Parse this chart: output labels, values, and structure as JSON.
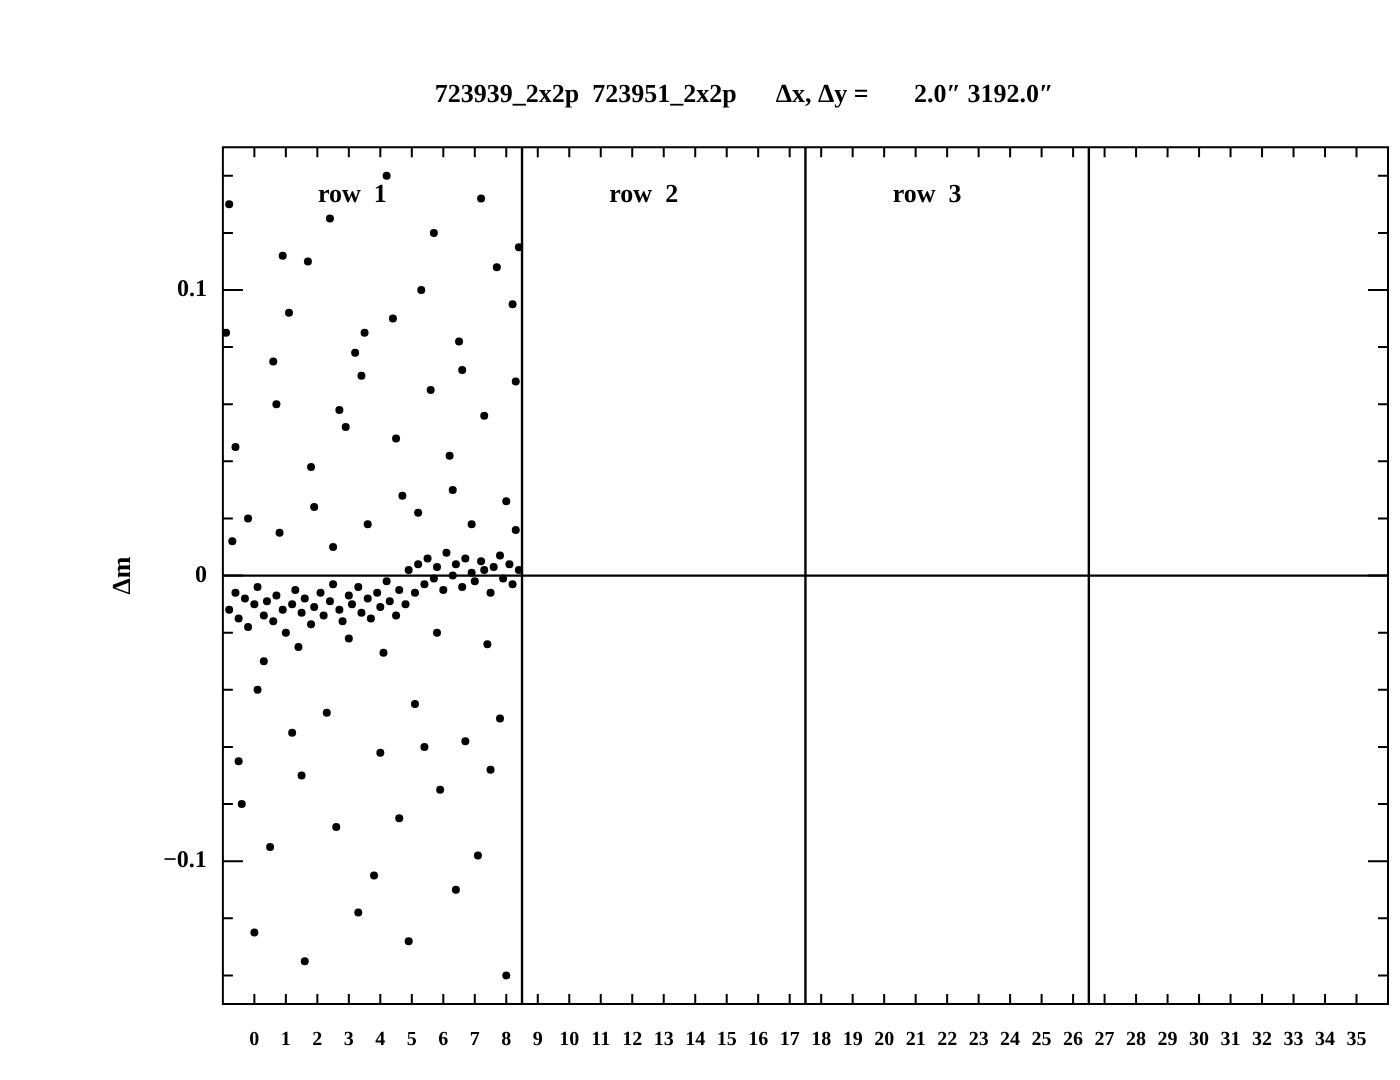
{
  "chart_data": {
    "type": "scatter",
    "title": "723939_2x2p  723951_2x2p      Δx, Δy =       2.0″ 3192.0″",
    "ylabel": "Δm",
    "x": [
      -0.8,
      -0.6,
      -0.5,
      -0.3,
      -0.2,
      0.0,
      0.1,
      0.3,
      0.4,
      0.6,
      0.7,
      0.9,
      1.0,
      1.2,
      1.3,
      1.5,
      1.6,
      1.8,
      1.9,
      2.1,
      2.2,
      2.4,
      2.5,
      2.7,
      2.8,
      3.0,
      3.1,
      3.3,
      3.4,
      3.6,
      3.7,
      3.9,
      4.0,
      4.2,
      4.3,
      4.5,
      4.6,
      4.8,
      4.9,
      5.1,
      5.2,
      5.4,
      5.5,
      5.7,
      5.8,
      6.0,
      6.1,
      6.3,
      6.4,
      6.6,
      6.7,
      6.9,
      7.0,
      7.2,
      7.3,
      7.5,
      7.6,
      7.8,
      7.9,
      8.1,
      8.2,
      8.4,
      -0.7,
      -0.2,
      0.3,
      0.8,
      1.4,
      1.9,
      2.5,
      3.0,
      3.6,
      4.1,
      4.7,
      5.2,
      5.8,
      6.3,
      6.9,
      7.4,
      8.0,
      8.3,
      -0.6,
      0.1,
      0.7,
      1.2,
      1.8,
      2.3,
      2.9,
      3.4,
      4.0,
      4.5,
      5.1,
      5.6,
      6.2,
      6.7,
      7.3,
      7.8,
      8.3,
      -0.9,
      -0.4,
      0.5,
      1.1,
      1.7,
      2.6,
      3.2,
      3.8,
      4.4,
      5.3,
      5.9,
      6.5,
      7.1,
      7.7,
      8.2,
      -0.8,
      0.0,
      0.9,
      1.6,
      2.4,
      3.3,
      4.2,
      4.9,
      5.7,
      6.4,
      7.2,
      8.0,
      -0.5,
      0.6,
      1.5,
      2.7,
      3.5,
      4.6,
      5.4,
      6.6,
      7.5,
      8.4
    ],
    "values": [
      -0.012,
      -0.006,
      -0.015,
      -0.008,
      -0.018,
      -0.01,
      -0.004,
      -0.014,
      -0.009,
      -0.016,
      -0.007,
      -0.012,
      -0.02,
      -0.01,
      -0.005,
      -0.013,
      -0.008,
      -0.017,
      -0.011,
      -0.006,
      -0.014,
      -0.009,
      -0.003,
      -0.012,
      -0.016,
      -0.007,
      -0.01,
      -0.004,
      -0.013,
      -0.008,
      -0.015,
      -0.006,
      -0.011,
      -0.002,
      -0.009,
      -0.014,
      -0.005,
      -0.01,
      0.002,
      -0.006,
      0.004,
      -0.003,
      0.006,
      -0.001,
      0.003,
      -0.005,
      0.008,
      0.0,
      0.004,
      -0.004,
      0.006,
      0.001,
      -0.002,
      0.005,
      0.002,
      -0.006,
      0.003,
      0.007,
      -0.001,
      0.004,
      -0.003,
      0.002,
      0.012,
      0.02,
      -0.03,
      0.015,
      -0.025,
      0.024,
      0.01,
      -0.022,
      0.018,
      -0.027,
      0.028,
      0.022,
      -0.02,
      0.03,
      0.018,
      -0.024,
      0.026,
      0.016,
      0.045,
      -0.04,
      0.06,
      -0.055,
      0.038,
      -0.048,
      0.052,
      0.07,
      -0.062,
      0.048,
      -0.045,
      0.065,
      0.042,
      -0.058,
      0.056,
      -0.05,
      0.068,
      0.085,
      -0.08,
      -0.095,
      0.092,
      0.11,
      -0.088,
      0.078,
      -0.105,
      0.09,
      0.1,
      -0.075,
      0.082,
      -0.098,
      0.108,
      0.095,
      0.13,
      -0.125,
      0.112,
      -0.135,
      0.125,
      -0.118,
      0.14,
      -0.128,
      0.12,
      -0.11,
      0.132,
      -0.14,
      -0.065,
      0.075,
      -0.07,
      0.058,
      0.085,
      -0.085,
      -0.06,
      0.072,
      -0.068,
      0.115
    ],
    "color": "#000000",
    "marker": "circle",
    "xlim": [
      -1,
      36
    ],
    "xticks": [
      0,
      1,
      2,
      3,
      4,
      5,
      6,
      7,
      8,
      9,
      10,
      11,
      12,
      13,
      14,
      15,
      16,
      17,
      18,
      19,
      20,
      21,
      22,
      23,
      24,
      25,
      26,
      27,
      28,
      29,
      30,
      31,
      32,
      33,
      34,
      35
    ],
    "ylim": [
      -0.15,
      0.15
    ],
    "yticks": [
      {
        "value": -0.14,
        "label": null
      },
      {
        "value": -0.12,
        "label": null
      },
      {
        "value": -0.1,
        "label": "−0.1"
      },
      {
        "value": -0.08,
        "label": null
      },
      {
        "value": -0.06,
        "label": null
      },
      {
        "value": -0.04,
        "label": null
      },
      {
        "value": -0.02,
        "label": null
      },
      0,
      {
        "value": 0.02,
        "label": null
      },
      {
        "value": 0.04,
        "label": null
      },
      {
        "value": 0.06,
        "label": null
      },
      {
        "value": 0.08,
        "label": null
      },
      {
        "value": 0.1,
        "label": "0.1"
      },
      {
        "value": 0.12,
        "label": null
      },
      {
        "value": 0.14,
        "label": null
      }
    ],
    "ref_lines": [
      {
        "axis": "y",
        "value": 0,
        "color": "#000000"
      },
      {
        "axis": "x",
        "value": 8.5,
        "color": "#000000"
      },
      {
        "axis": "x",
        "value": 17.5,
        "color": "#000000"
      },
      {
        "axis": "x",
        "value": 26.5,
        "color": "#000000"
      }
    ],
    "annotations": [
      "row  1",
      "row  2",
      "row  3"
    ],
    "grid": false,
    "legend": false
  }
}
